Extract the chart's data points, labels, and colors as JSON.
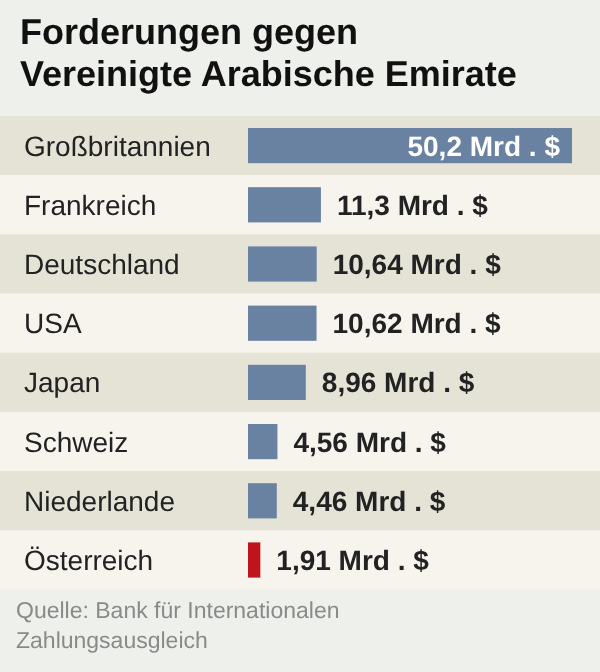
{
  "chart_data": {
    "type": "bar",
    "orientation": "horizontal",
    "title": "Forderungen gegen Vereinigte Arabische Emirate",
    "categories": [
      "Großbritannien",
      "Frankreich",
      "Deutschland",
      "USA",
      "Japan",
      "Schweiz",
      "Niederlande",
      "Österreich"
    ],
    "values": [
      50.2,
      11.3,
      10.64,
      10.62,
      8.96,
      4.56,
      4.46,
      1.91
    ],
    "colors": [
      "#6a82a2",
      "#6a82a2",
      "#6a82a2",
      "#6a82a2",
      "#6a82a2",
      "#6a82a2",
      "#6a82a2",
      "#c0141c"
    ],
    "value_labels": [
      "50,2 Mrd . $",
      "11,3 Mrd . $",
      "10,64 Mrd . $",
      "10,62 Mrd . $",
      "8,96 Mrd . $",
      "4,56 Mrd . $",
      "4,46 Mrd . $",
      "1,91 Mrd . $"
    ],
    "annotations": [
      "Quelle: Bank für Internationalen Zahlungsausgleich"
    ]
  }
}
